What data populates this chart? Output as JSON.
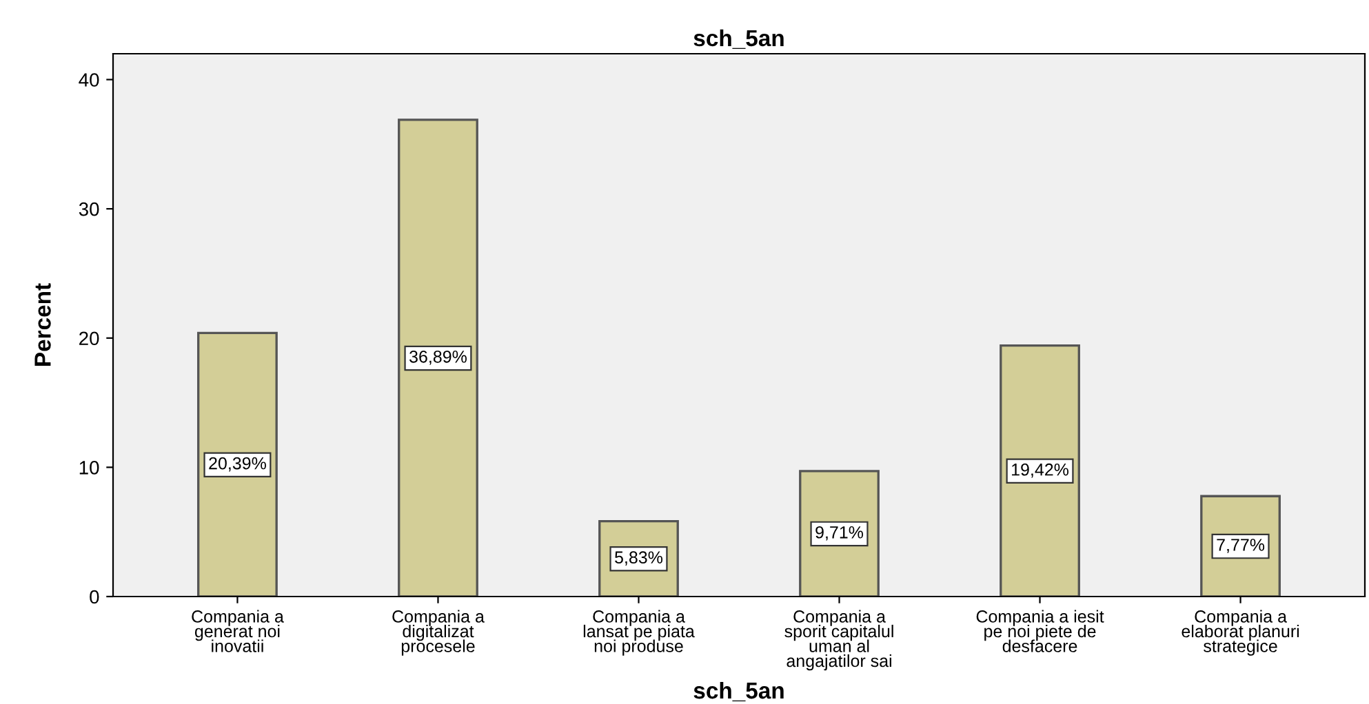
{
  "chart_data": {
    "type": "bar",
    "title": "sch_5an",
    "xlabel": "sch_5an",
    "ylabel": "Percent",
    "categories": [
      "Compania a\ngenerat noi\ninovatii",
      "Compania a\ndigitalizat\nprocesele",
      "Compania a\nlansat pe piata\nnoi produse",
      "Compania a\nsporit capitalul\numan al\nangajatilor sai",
      "Compania a iesit\npe noi piete de\ndesfacere",
      "Compania a\nelaborat planuri\nstrategice"
    ],
    "values": [
      20.39,
      36.89,
      5.83,
      9.71,
      19.42,
      7.77
    ],
    "value_labels": [
      "20,39%",
      "36,89%",
      "5,83%",
      "9,71%",
      "19,42%",
      "7,77%"
    ],
    "color": "#d3ce97",
    "ylim": [
      0,
      42
    ],
    "yticks": [
      0,
      10,
      20,
      30,
      40
    ],
    "grid": false,
    "legend": false
  }
}
